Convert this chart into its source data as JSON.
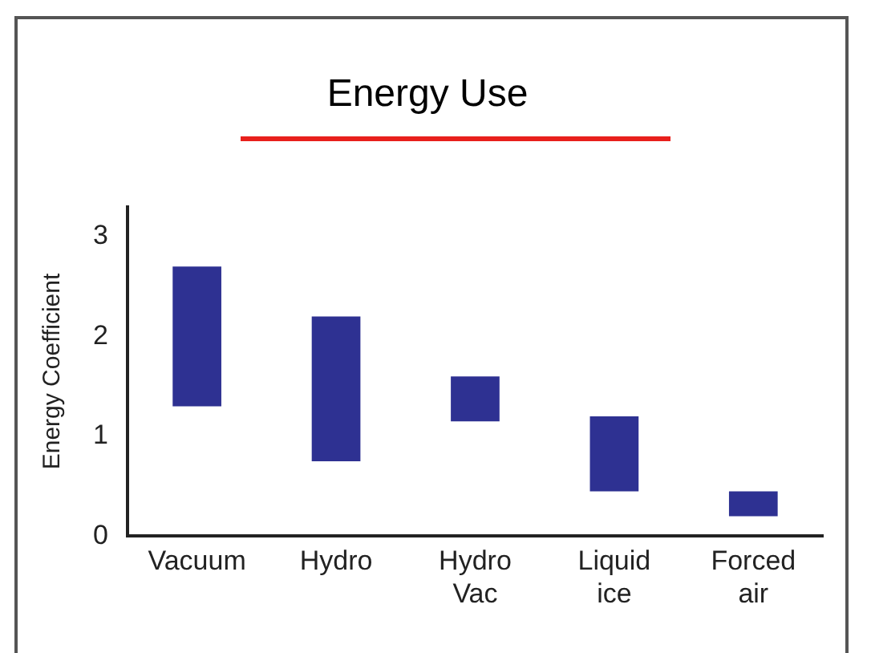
{
  "chart_data": {
    "type": "bar",
    "title": "Energy Use",
    "ylabel": "Energy Coefficient",
    "categories": [
      "Vacuum",
      "Hydro",
      "Hydro Vac",
      "Liquid ice",
      "Forced air"
    ],
    "values": [
      1.4,
      1.45,
      0.45,
      0.75,
      0.25
    ],
    "base": [
      1.3,
      0.75,
      1.15,
      0.45,
      0.2
    ],
    "color": "#2e3192",
    "ylim": [
      0,
      3.3
    ],
    "yticks": [
      0,
      1,
      2,
      3
    ],
    "grid": false,
    "legend": false
  }
}
